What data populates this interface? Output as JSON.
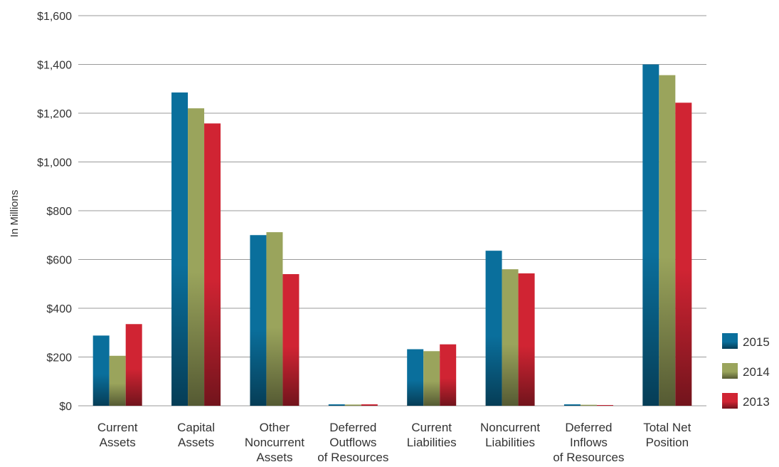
{
  "chart_data": {
    "type": "bar",
    "ylabel": "In Millions",
    "ylim": [
      0,
      1600
    ],
    "y_ticks": [
      "$0",
      "$200",
      "$400",
      "$600",
      "$800",
      "$1,000",
      "$1,200",
      "$1,400",
      "$1,600"
    ],
    "grid": true,
    "legend_position": "right-bottom",
    "categories": [
      [
        "Current",
        "Assets"
      ],
      [
        "Capital",
        "Assets"
      ],
      [
        "Other",
        "Noncurrent",
        "Assets"
      ],
      [
        "Deferred",
        "Outflows",
        "of Resources"
      ],
      [
        "Current",
        "Liabilities"
      ],
      [
        "Noncurrent",
        "Liabilities"
      ],
      [
        "Deferred",
        "Inflows",
        "of Resources"
      ],
      [
        "Total Net",
        "Position"
      ]
    ],
    "series": [
      {
        "name": "2015",
        "color": "#0a6f9c",
        "values": [
          288,
          1285,
          700,
          6,
          232,
          636,
          6,
          1400
        ]
      },
      {
        "name": "2014",
        "color": "#9aa45c",
        "values": [
          205,
          1220,
          712,
          5,
          224,
          560,
          4,
          1356
        ]
      },
      {
        "name": "2013",
        "color": "#d02433",
        "values": [
          335,
          1158,
          540,
          6,
          252,
          543,
          3,
          1243
        ]
      }
    ]
  }
}
